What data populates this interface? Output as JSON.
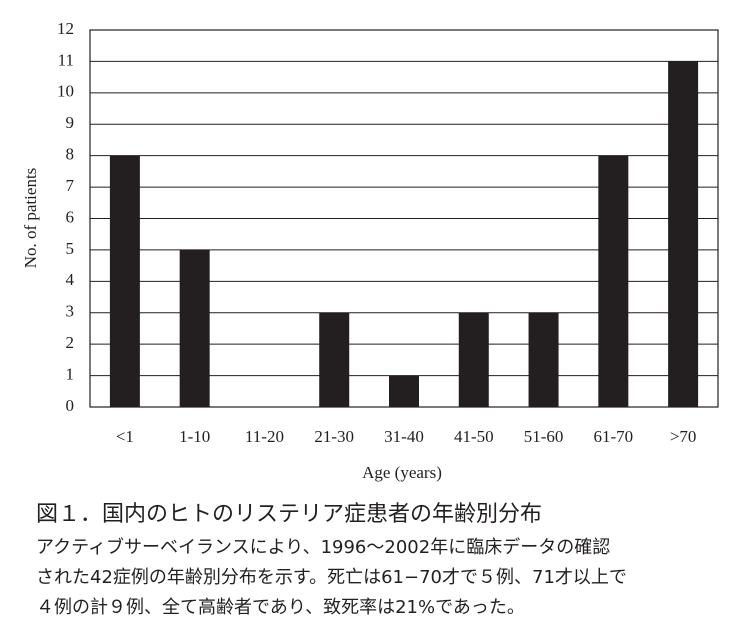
{
  "chart_data": {
    "type": "bar",
    "categories": [
      "<1",
      "1-10",
      "11-20",
      "21-30",
      "31-40",
      "41-50",
      "51-60",
      "61-70",
      ">70"
    ],
    "values": [
      8,
      5,
      0,
      3,
      1,
      3,
      3,
      8,
      11
    ],
    "color": "#231f20",
    "xlabel": "Age (years)",
    "ylabel": "No. of patients",
    "ylim": [
      0,
      12
    ],
    "yticks": [
      0,
      1,
      2,
      3,
      4,
      5,
      6,
      7,
      8,
      9,
      10,
      11,
      12
    ],
    "grid": true,
    "caption_title": "図１．国内のヒトのリステリア症患者の年齢別分布",
    "caption_lines": [
      "アクティブサーベイランスにより、1996〜2002年に臨床データの確認",
      "された42症例の年齢別分布を示す。死亡は61−70才で５例、71才以上で",
      "４例の計９例、全て高齢者であり、致死率は21%であった。"
    ]
  }
}
